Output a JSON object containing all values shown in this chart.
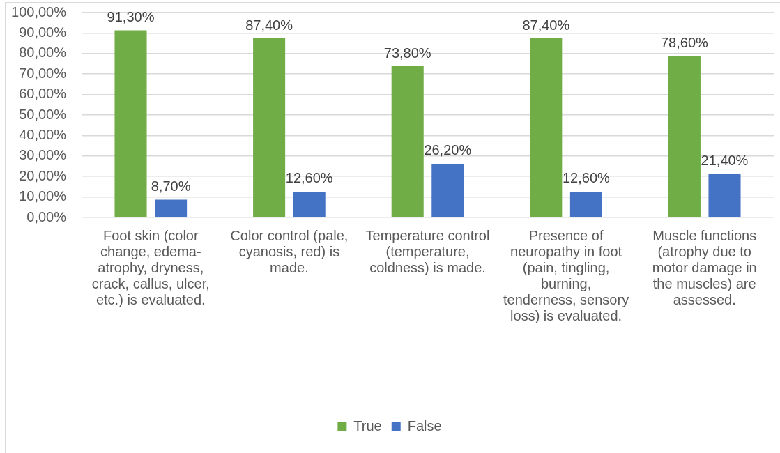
{
  "chart_data": {
    "type": "bar",
    "categories": [
      "Foot skin (color change, edema-atrophy, dryness, crack, callus, ulcer, etc.) is evaluated.",
      "Color control (pale, cyanosis, red) is made.",
      "Temperature control (temperature, coldness) is made.",
      "Presence of neuropathy in foot (pain, tingling, burning, tenderness, sensory loss) is evaluated.",
      "Muscle functions (atrophy due to motor damage in the muscles) are assessed."
    ],
    "series": [
      {
        "name": "True",
        "color": "#70ad47",
        "values": [
          91.3,
          87.4,
          73.8,
          87.4,
          78.6
        ],
        "value_labels": [
          "91,30%",
          "87,40%",
          "73,80%",
          "87,40%",
          "78,60%"
        ]
      },
      {
        "name": "False",
        "color": "#4472c4",
        "values": [
          8.7,
          12.6,
          26.2,
          12.6,
          21.4
        ],
        "value_labels": [
          "8,70%",
          "12,60%",
          "26,20%",
          "12,60%",
          "21,40%"
        ]
      }
    ],
    "ylim": [
      0,
      100
    ],
    "yticks": [
      {
        "value": 0,
        "label": "0,00%"
      },
      {
        "value": 10,
        "label": "10,00%"
      },
      {
        "value": 20,
        "label": "20,00%"
      },
      {
        "value": 30,
        "label": "30,00%"
      },
      {
        "value": 40,
        "label": "40,00%"
      },
      {
        "value": 50,
        "label": "50,00%"
      },
      {
        "value": 60,
        "label": "60,00%"
      },
      {
        "value": 70,
        "label": "70,00%"
      },
      {
        "value": 80,
        "label": "80,00%"
      },
      {
        "value": 90,
        "label": "90,00%"
      },
      {
        "value": 100,
        "label": "100,00%"
      }
    ],
    "grid": "y",
    "legend": "bottom"
  }
}
